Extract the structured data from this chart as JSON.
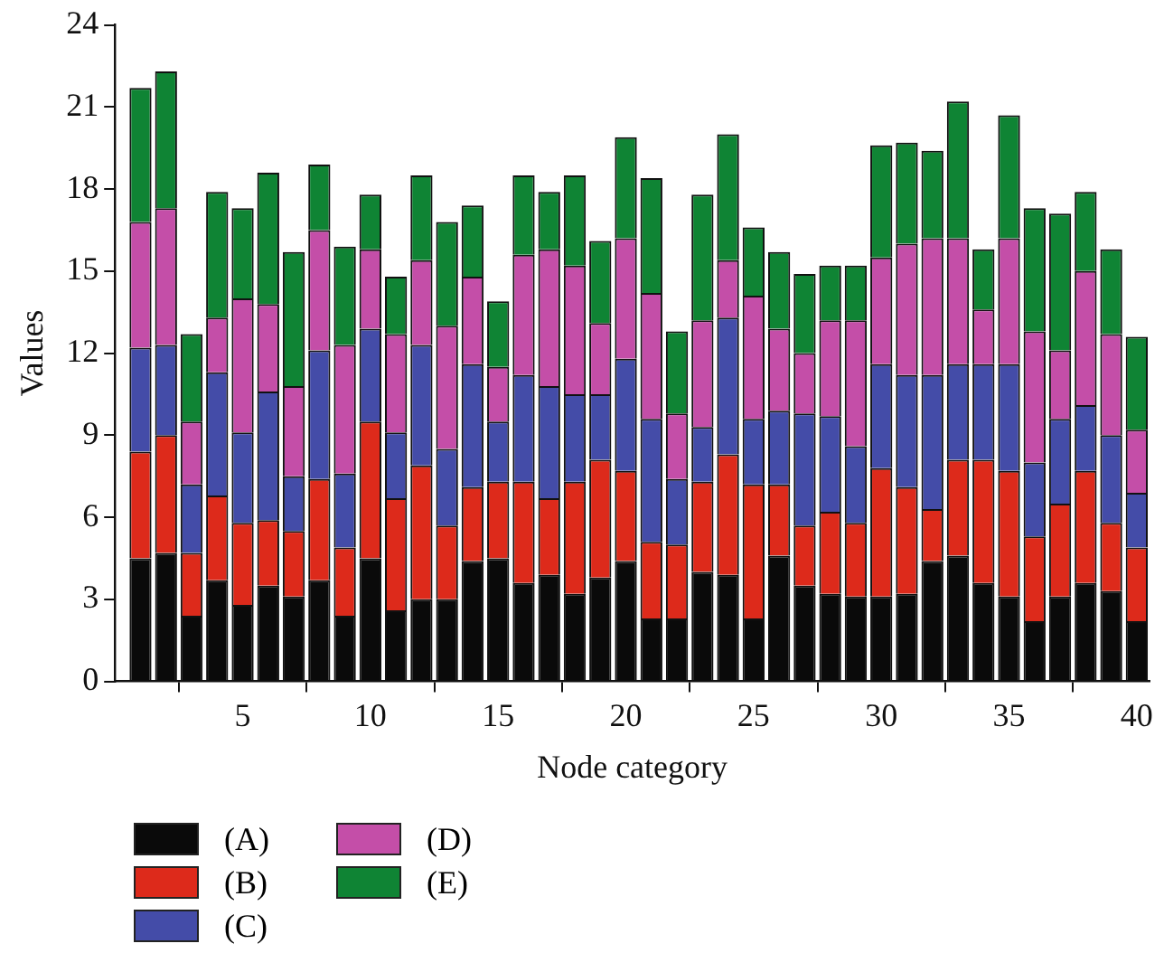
{
  "chart_data": {
    "type": "bar",
    "stacked": true,
    "xlabel": "Node category",
    "ylabel": "Values",
    "legend": "bottom",
    "grid": false,
    "x": [
      1,
      2,
      3,
      4,
      5,
      6,
      7,
      8,
      9,
      10,
      11,
      12,
      13,
      14,
      15,
      16,
      17,
      18,
      19,
      20,
      21,
      22,
      23,
      24,
      25,
      26,
      27,
      28,
      29,
      30,
      31,
      32,
      33,
      34,
      35,
      36,
      37,
      38,
      39,
      40
    ],
    "xlim": [
      0,
      40.5
    ],
    "xticks": [
      5,
      10,
      15,
      20,
      25,
      30,
      35,
      40
    ],
    "ylim": [
      0,
      24
    ],
    "yticks": [
      0,
      3,
      6,
      9,
      12,
      15,
      18,
      21,
      24
    ],
    "series": [
      {
        "name": "(A)",
        "color": "#0a0a0a",
        "values": [
          4.5,
          4.7,
          2.4,
          3.7,
          2.8,
          3.5,
          3.1,
          3.7,
          2.4,
          4.5,
          2.6,
          3.0,
          3.0,
          4.4,
          4.5,
          3.6,
          3.9,
          3.2,
          3.8,
          4.4,
          2.3,
          2.3,
          4.0,
          3.9,
          2.3,
          4.6,
          3.5,
          3.2,
          3.1,
          3.1,
          3.2,
          4.4,
          4.6,
          3.6,
          3.1,
          2.2,
          3.1,
          3.6,
          3.3,
          2.2
        ]
      },
      {
        "name": "(B)",
        "color": "#dd2a1b",
        "values": [
          3.9,
          4.3,
          2.3,
          3.1,
          3.0,
          2.4,
          2.4,
          3.7,
          2.5,
          5.0,
          4.1,
          4.9,
          2.7,
          2.7,
          2.8,
          3.7,
          2.8,
          4.1,
          4.3,
          3.3,
          2.8,
          2.7,
          3.3,
          4.4,
          4.9,
          2.6,
          2.2,
          3.0,
          2.7,
          4.7,
          3.9,
          1.9,
          3.5,
          4.5,
          4.6,
          3.1,
          3.4,
          4.1,
          2.5,
          2.7
        ]
      },
      {
        "name": "(C)",
        "color": "#444ca8",
        "values": [
          3.8,
          3.3,
          2.5,
          4.5,
          3.3,
          4.7,
          2.0,
          4.7,
          2.7,
          3.4,
          2.4,
          4.4,
          2.8,
          4.5,
          2.2,
          3.9,
          4.1,
          3.2,
          2.4,
          4.1,
          4.5,
          2.4,
          2.0,
          5.0,
          2.4,
          2.7,
          4.1,
          3.5,
          2.8,
          3.8,
          4.1,
          4.9,
          3.5,
          3.5,
          3.9,
          2.7,
          3.1,
          2.4,
          3.2,
          2.0
        ]
      },
      {
        "name": "(D)",
        "color": "#c44ea8",
        "values": [
          4.6,
          5.0,
          2.3,
          2.0,
          4.9,
          3.2,
          3.3,
          4.4,
          4.7,
          2.9,
          3.6,
          3.1,
          4.5,
          3.2,
          2.0,
          4.4,
          5.0,
          4.7,
          2.6,
          4.4,
          4.6,
          2.4,
          3.9,
          2.1,
          4.5,
          3.0,
          2.2,
          3.5,
          4.6,
          3.9,
          4.8,
          5.0,
          4.6,
          2.0,
          4.6,
          4.8,
          2.5,
          4.9,
          3.7,
          2.3
        ]
      },
      {
        "name": "(E)",
        "color": "#0f8434",
        "values": [
          4.9,
          5.0,
          3.2,
          4.6,
          3.3,
          4.8,
          4.9,
          2.4,
          3.6,
          2.0,
          2.1,
          3.1,
          3.8,
          2.6,
          2.4,
          2.9,
          2.1,
          3.3,
          3.0,
          3.7,
          4.2,
          3.0,
          4.6,
          4.6,
          2.5,
          2.8,
          2.9,
          2.0,
          2.0,
          4.1,
          3.7,
          3.2,
          5.0,
          2.2,
          4.5,
          4.5,
          5.0,
          2.9,
          3.1,
          3.4
        ]
      }
    ]
  }
}
